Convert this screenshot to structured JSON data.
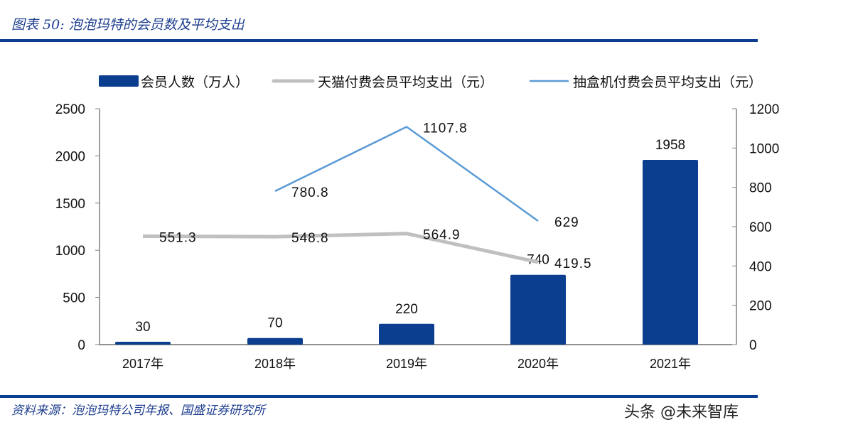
{
  "title": "图表 50: 泡泡玛特的会员数及平均支出",
  "source": "资料来源：泡泡玛特公司年报、国盛证券研究所",
  "watermark": "头条 @未来智库",
  "colors": {
    "bar": "#0b3e8f",
    "tmall": "#c0c0c0",
    "blindbox": "#5b9bd5",
    "rule": "#0b3e8f"
  },
  "chart_data": {
    "type": "bar+line",
    "categories": [
      "2017年",
      "2018年",
      "2019年",
      "2020年",
      "2021年"
    ],
    "legend_position": "top",
    "grid": false,
    "series": [
      {
        "name": "会员人数（万人）",
        "type": "bar",
        "axis": "left",
        "values": [
          30,
          70,
          220,
          740,
          1958
        ],
        "labels": [
          "30",
          "70",
          "220",
          "740",
          "1958"
        ]
      },
      {
        "name": "天猫付费会员平均支出（元）",
        "type": "line",
        "axis": "right",
        "values": [
          551.3,
          548.8,
          564.9,
          419.5,
          null
        ],
        "labels": [
          "551.3",
          "548.8",
          "564.9",
          "419.5",
          ""
        ]
      },
      {
        "name": "抽盒机付费会员平均支出（元）",
        "type": "line",
        "axis": "right",
        "values": [
          null,
          780.8,
          1107.8,
          629,
          null
        ],
        "labels": [
          "",
          "780.8",
          "1107.8",
          "629",
          ""
        ]
      }
    ],
    "y_left": {
      "lim": [
        0,
        2500
      ],
      "ticks": [
        "0",
        "500",
        "1000",
        "1500",
        "2000",
        "2500"
      ]
    },
    "y_right": {
      "lim": [
        0,
        1200
      ],
      "ticks": [
        "0",
        "200",
        "400",
        "600",
        "800",
        "1000",
        "1200"
      ]
    }
  }
}
